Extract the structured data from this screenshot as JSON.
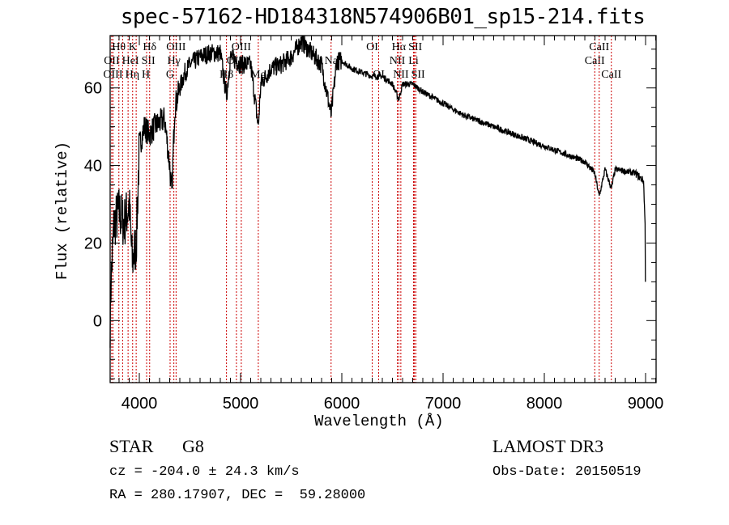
{
  "chart_data": {
    "type": "line",
    "title": "spec-57162-HD184318N574906B01_sp15-214.fits",
    "xlabel": "Wavelength (Å)",
    "ylabel": "Flux (relative)",
    "xlim": [
      3712,
      9104
    ],
    "ylim": [
      -16,
      73.5
    ],
    "xticks": [
      4000,
      5000,
      6000,
      7000,
      8000,
      9000
    ],
    "yticks": [
      0,
      20,
      40,
      60
    ],
    "grid": false,
    "series": [
      {
        "name": "spectrum",
        "points": [
          [
            3712,
            0
          ],
          [
            3720,
            10
          ],
          [
            3750,
            25
          ],
          [
            3800,
            28
          ],
          [
            3850,
            25
          ],
          [
            3900,
            30
          ],
          [
            3930,
            15
          ],
          [
            3970,
            20
          ],
          [
            4000,
            45
          ],
          [
            4050,
            50
          ],
          [
            4100,
            48
          ],
          [
            4150,
            50
          ],
          [
            4200,
            51
          ],
          [
            4250,
            52
          ],
          [
            4300,
            40
          ],
          [
            4320,
            32
          ],
          [
            4350,
            55
          ],
          [
            4400,
            60
          ],
          [
            4450,
            64
          ],
          [
            4500,
            66
          ],
          [
            4600,
            68
          ],
          [
            4700,
            69
          ],
          [
            4800,
            69
          ],
          [
            4861,
            58
          ],
          [
            4900,
            68
          ],
          [
            5000,
            66
          ],
          [
            5100,
            66
          ],
          [
            5175,
            50
          ],
          [
            5200,
            61
          ],
          [
            5300,
            65
          ],
          [
            5400,
            66
          ],
          [
            5500,
            68
          ],
          [
            5600,
            72
          ],
          [
            5700,
            69
          ],
          [
            5800,
            66
          ],
          [
            5894,
            53
          ],
          [
            5950,
            67
          ],
          [
            6000,
            67
          ],
          [
            6100,
            65
          ],
          [
            6200,
            64
          ],
          [
            6300,
            63
          ],
          [
            6400,
            63
          ],
          [
            6500,
            61
          ],
          [
            6563,
            57
          ],
          [
            6600,
            61
          ],
          [
            6700,
            61
          ],
          [
            6800,
            59
          ],
          [
            7000,
            56
          ],
          [
            7200,
            53
          ],
          [
            7500,
            50
          ],
          [
            7800,
            47
          ],
          [
            8000,
            45
          ],
          [
            8200,
            43
          ],
          [
            8400,
            41
          ],
          [
            8498,
            38
          ],
          [
            8542,
            32
          ],
          [
            8600,
            39
          ],
          [
            8662,
            34
          ],
          [
            8700,
            39
          ],
          [
            8900,
            38
          ],
          [
            8980,
            36
          ],
          [
            8995,
            25
          ],
          [
            9000,
            0
          ]
        ]
      }
    ],
    "lines": [
      {
        "label": "OII",
        "wl": 3727,
        "row": 1
      },
      {
        "label": "OIII",
        "wl": 3740,
        "row": 2
      },
      {
        "label": "Hθ",
        "wl": 3798,
        "row": 0
      },
      {
        "label": "Hη",
        "wl": 3835,
        "row": 2
      },
      {
        "label": "HeI",
        "wl": 3889,
        "row": 1
      },
      {
        "label": "K",
        "wl": 3934,
        "row": 0
      },
      {
        "label": "H",
        "wl": 3969,
        "row": 2
      },
      {
        "label": "SII",
        "wl": 4072,
        "row": 1
      },
      {
        "label": "Hδ",
        "wl": 4102,
        "row": 0
      },
      {
        "label": "G",
        "wl": 4304,
        "row": 2
      },
      {
        "label": "Hγ",
        "wl": 4341,
        "row": 1
      },
      {
        "label": "OIII",
        "wl": 4363,
        "row": 0
      },
      {
        "label": "Hβ",
        "wl": 4861,
        "row": 2
      },
      {
        "label": "OIII",
        "wl": 4959,
        "row": 1
      },
      {
        "label": "OIII",
        "wl": 5007,
        "row": 0
      },
      {
        "label": "Mg",
        "wl": 5175,
        "row": 2
      },
      {
        "label": "Na",
        "wl": 5894,
        "row": 1
      },
      {
        "label": "OI",
        "wl": 6300,
        "row": 0
      },
      {
        "label": "OI",
        "wl": 6364,
        "row": 2
      },
      {
        "label": "NII",
        "wl": 6548,
        "row": 1
      },
      {
        "label": "Hα",
        "wl": 6563,
        "row": 0
      },
      {
        "label": "NII",
        "wl": 6583,
        "row": 2
      },
      {
        "label": "Li",
        "wl": 6708,
        "row": 1
      },
      {
        "label": "SII",
        "wl": 6717,
        "row": 0
      },
      {
        "label": "SII",
        "wl": 6731,
        "row": 2
      },
      {
        "label": "CaII",
        "wl": 8498,
        "row": 1
      },
      {
        "label": "CaII",
        "wl": 8542,
        "row": 0
      },
      {
        "label": "CaII",
        "wl": 8662,
        "row": 2
      }
    ],
    "colors": {
      "spectrum": "#000000",
      "lines": "#cc0000"
    }
  },
  "info": {
    "class": "STAR",
    "subclass": "G8",
    "survey": "LAMOST DR3",
    "cz": "cz = -204.0 ± 24.3 km/s",
    "obs_date": "Obs-Date: 20150519",
    "coords": "RA = 280.17907, DEC =  59.28000"
  }
}
